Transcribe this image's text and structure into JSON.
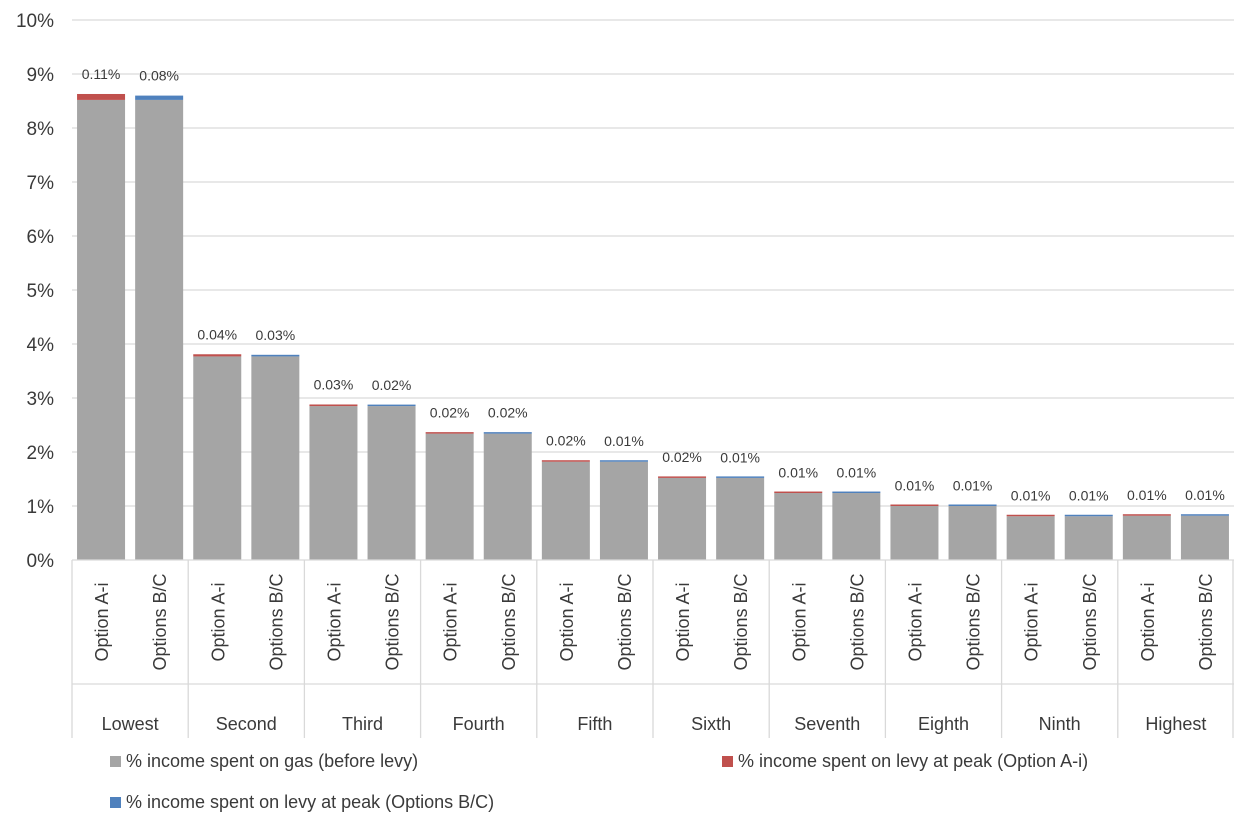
{
  "chart_data": {
    "type": "bar",
    "stacked": true,
    "title": "",
    "xlabel": "",
    "ylabel": "",
    "ylim": [
      0,
      10
    ],
    "y_ticks": [
      "0%",
      "1%",
      "2%",
      "3%",
      "4%",
      "5%",
      "6%",
      "7%",
      "8%",
      "9%",
      "10%"
    ],
    "grid": true,
    "legend_position": "bottom",
    "groups": [
      "Lowest",
      "Second",
      "Third",
      "Fourth",
      "Fifth",
      "Sixth",
      "Seventh",
      "Eighth",
      "Ninth",
      "Highest"
    ],
    "sub_categories": [
      "Option A-i",
      "Options B/C"
    ],
    "series": [
      {
        "name": "% income spent on gas (before levy)",
        "color": "#a5a5a5",
        "values": [
          8.52,
          8.52,
          3.77,
          3.77,
          2.85,
          2.85,
          2.34,
          2.34,
          1.82,
          1.82,
          1.52,
          1.52,
          1.24,
          1.24,
          1.0,
          1.0,
          0.81,
          0.81,
          0.82,
          0.82
        ]
      },
      {
        "name": "% income spent on levy at peak (Option A-i)",
        "color": "#c0504d",
        "values": [
          0.11,
          0,
          0.04,
          0,
          0.03,
          0,
          0.02,
          0,
          0.02,
          0,
          0.02,
          0,
          0.01,
          0,
          0.01,
          0,
          0.01,
          0,
          0.01,
          0
        ]
      },
      {
        "name": "% income spent on levy at peak (Options B/C)",
        "color": "#4f81bd",
        "values": [
          0,
          0.08,
          0,
          0.03,
          0,
          0.02,
          0,
          0.02,
          0,
          0.01,
          0,
          0.01,
          0,
          0.01,
          0,
          0.01,
          0,
          0.01,
          0,
          0.01
        ]
      }
    ],
    "data_labels": [
      "0.11%",
      "0.08%",
      "0.04%",
      "0.03%",
      "0.03%",
      "0.02%",
      "0.02%",
      "0.02%",
      "0.02%",
      "0.01%",
      "0.02%",
      "0.01%",
      "0.01%",
      "0.01%",
      "0.01%",
      "0.01%",
      "0.01%",
      "0.01%",
      "0.01%",
      "0.01%"
    ]
  }
}
